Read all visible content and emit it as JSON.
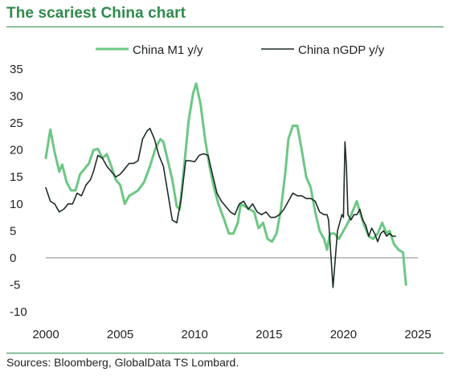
{
  "title": "The scariest China chart",
  "source": "Sources: Bloomberg, GlobalData TS Lombard.",
  "chart_data": {
    "type": "line",
    "legend_position": "top-right",
    "grid": false,
    "xlim": [
      2000,
      2025
    ],
    "ylim": [
      -10,
      35
    ],
    "x_ticks": [
      2000,
      2005,
      2010,
      2015,
      2020,
      2025
    ],
    "y_ticks": [
      35,
      30,
      25,
      20,
      15,
      10,
      5,
      0,
      -5,
      -10
    ],
    "series": [
      {
        "name": "China M1 y/y",
        "color": "#6cc784",
        "x": [
          2000.0,
          2000.3,
          2000.6,
          2000.9,
          2001.1,
          2001.4,
          2001.7,
          2002.0,
          2002.3,
          2002.6,
          2002.9,
          2003.2,
          2003.5,
          2003.8,
          2004.1,
          2004.4,
          2004.7,
          2005.0,
          2005.3,
          2005.6,
          2005.9,
          2006.2,
          2006.6,
          2007.0,
          2007.4,
          2007.7,
          2007.9,
          2008.2,
          2008.5,
          2008.8,
          2009.0,
          2009.3,
          2009.6,
          2009.9,
          2010.1,
          2010.4,
          2010.7,
          2011.0,
          2011.3,
          2011.6,
          2012.0,
          2012.3,
          2012.6,
          2012.9,
          2013.1,
          2013.4,
          2013.7,
          2014.0,
          2014.3,
          2014.6,
          2014.9,
          2015.2,
          2015.5,
          2015.8,
          2016.1,
          2016.3,
          2016.6,
          2016.9,
          2017.2,
          2017.5,
          2017.8,
          2018.1,
          2018.4,
          2018.7,
          2018.9,
          2019.1,
          2019.4,
          2019.7,
          2020.0,
          2020.3,
          2020.6,
          2020.9,
          2021.1,
          2021.4,
          2021.7,
          2022.0,
          2022.3,
          2022.6,
          2022.9,
          2023.1,
          2023.4,
          2023.7,
          2024.0,
          2024.2
        ],
        "values": [
          18.5,
          23.8,
          19.5,
          16.0,
          17.3,
          14.0,
          12.5,
          12.5,
          15.5,
          16.5,
          17.5,
          20.0,
          20.2,
          18.5,
          19.2,
          17.0,
          14.5,
          13.5,
          10.0,
          11.5,
          12.0,
          12.5,
          14.0,
          17.0,
          20.5,
          22.0,
          21.5,
          18.0,
          14.5,
          9.5,
          9.0,
          17.0,
          25.5,
          30.5,
          32.3,
          28.5,
          22.0,
          17.0,
          13.0,
          10.0,
          7.0,
          4.5,
          4.5,
          6.5,
          10.0,
          9.5,
          9.0,
          8.5,
          5.5,
          6.5,
          3.5,
          3.0,
          4.5,
          9.0,
          16.0,
          22.0,
          24.5,
          24.5,
          20.0,
          15.0,
          13.0,
          8.5,
          5.0,
          3.5,
          1.5,
          4.5,
          4.5,
          3.5,
          5.0,
          6.5,
          8.5,
          10.5,
          8.5,
          6.0,
          4.0,
          3.5,
          4.5,
          6.5,
          4.5,
          5.0,
          2.5,
          1.5,
          1.0,
          -5.0
        ]
      },
      {
        "name": "China nGDP y/y",
        "color": "#1f2d26",
        "x": [
          2000.0,
          2000.3,
          2000.6,
          2000.9,
          2001.2,
          2001.5,
          2001.8,
          2002.1,
          2002.4,
          2002.7,
          2003.0,
          2003.2,
          2003.5,
          2003.8,
          2004.1,
          2004.4,
          2004.7,
          2005.0,
          2005.3,
          2005.6,
          2005.9,
          2006.2,
          2006.5,
          2006.8,
          2007.0,
          2007.3,
          2007.6,
          2007.9,
          2008.2,
          2008.5,
          2008.8,
          2009.1,
          2009.4,
          2009.7,
          2010.0,
          2010.3,
          2010.6,
          2010.9,
          2011.2,
          2011.5,
          2011.8,
          2012.1,
          2012.4,
          2012.7,
          2013.0,
          2013.3,
          2013.6,
          2013.9,
          2014.2,
          2014.5,
          2014.8,
          2015.1,
          2015.4,
          2015.7,
          2016.0,
          2016.3,
          2016.6,
          2016.9,
          2017.2,
          2017.5,
          2017.8,
          2018.1,
          2018.4,
          2018.7,
          2018.9,
          2019.0,
          2019.3,
          2019.6,
          2019.9,
          2020.0,
          2020.1,
          2020.2,
          2020.3,
          2020.5,
          2020.7,
          2020.9,
          2021.1,
          2021.3,
          2021.5,
          2021.7,
          2021.9,
          2022.1,
          2022.3,
          2022.5,
          2022.7,
          2022.9,
          2023.1,
          2023.3,
          2023.5
        ],
        "values": [
          13.0,
          10.5,
          10.0,
          8.5,
          9.0,
          10.0,
          10.0,
          12.0,
          11.5,
          13.5,
          14.5,
          16.0,
          19.0,
          18.5,
          17.0,
          16.0,
          15.0,
          15.5,
          16.5,
          17.5,
          17.5,
          18.0,
          22.0,
          23.5,
          24.0,
          22.0,
          19.0,
          17.0,
          12.0,
          7.0,
          6.5,
          11.0,
          18.0,
          18.0,
          17.8,
          19.0,
          19.3,
          19.0,
          15.5,
          12.0,
          10.5,
          9.5,
          8.5,
          8.0,
          10.0,
          10.5,
          9.0,
          10.0,
          8.5,
          8.0,
          8.5,
          7.5,
          7.5,
          8.0,
          9.0,
          10.5,
          12.0,
          11.5,
          11.5,
          11.0,
          11.0,
          10.5,
          8.5,
          8.0,
          8.0,
          7.0,
          -5.5,
          5.0,
          8.0,
          7.5,
          21.5,
          17.0,
          8.0,
          7.0,
          8.0,
          8.0,
          9.0,
          7.0,
          6.0,
          4.0,
          5.5,
          4.5,
          3.0,
          4.5,
          5.0,
          4.0,
          4.5,
          4.0,
          4.0
        ]
      }
    ]
  }
}
